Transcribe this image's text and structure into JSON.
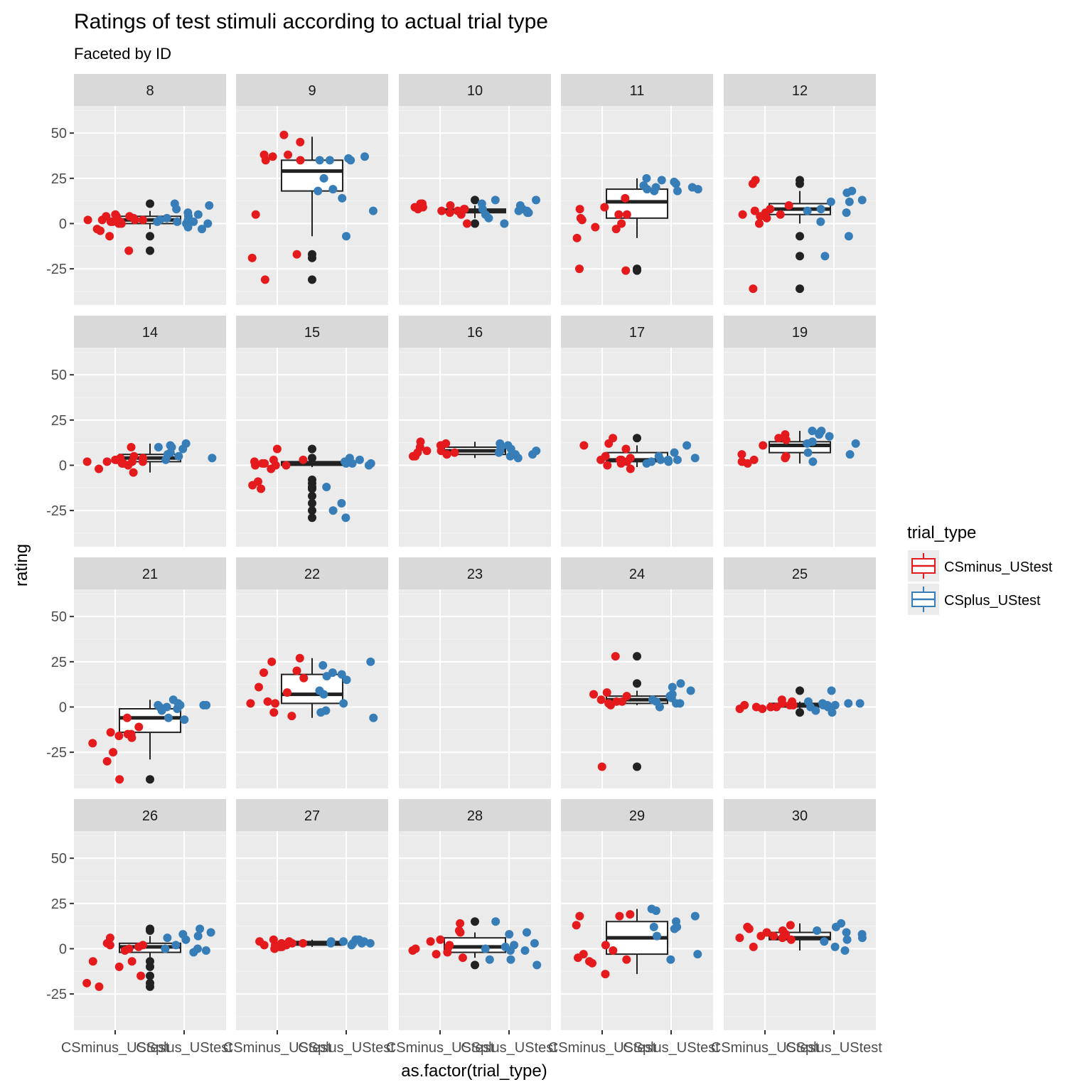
{
  "chart_data": {
    "type": "boxplot+jitter (faceted)",
    "title": "Ratings of test stimuli according to actual trial type",
    "subtitle": "Faceted by ID",
    "xlabel": "as.factor(trial_type)",
    "ylabel": "rating",
    "categories": [
      "CSminus_UStest",
      "CSplus_UStest"
    ],
    "y_ticks": [
      50,
      25,
      0,
      -25
    ],
    "ylim": [
      -45,
      65
    ],
    "legend": {
      "title": "trial_type",
      "placement": "right",
      "entries": [
        {
          "label": "CSminus_UStest",
          "color": "#e41a1c"
        },
        {
          "label": "CSplus_UStest",
          "color": "#377eb8"
        }
      ]
    },
    "colors": {
      "CSminus_UStest": "#e41a1c",
      "CSplus_UStest": "#377eb8",
      "box": "#222222",
      "panel": "#ebebeb",
      "strip": "#d9d9d9"
    },
    "panels": [
      {
        "id": "8",
        "box": {
          "whisker_low": -3,
          "q1": 0,
          "median": 2,
          "q3": 4,
          "whisker_high": 7
        },
        "outliers": [
          11,
          -7,
          -15
        ],
        "csminus": [
          -3,
          -15,
          0,
          1,
          2,
          3,
          4,
          5,
          4,
          3,
          2,
          1,
          0,
          -7,
          2,
          4,
          1,
          -4,
          2
        ],
        "csplus": [
          1,
          2,
          8,
          11,
          10,
          0,
          -2,
          6,
          4,
          2,
          1,
          0,
          -3,
          3,
          5,
          1
        ]
      },
      {
        "id": "9",
        "box": {
          "whisker_low": -7,
          "q1": 18,
          "median": 29,
          "q3": 35,
          "whisker_high": 48
        },
        "outliers": [
          -17,
          -19,
          -31
        ],
        "csminus": [
          38,
          37,
          35,
          45,
          49,
          35,
          38,
          5,
          -17,
          -19,
          -31
        ],
        "csplus": [
          35,
          37,
          36,
          35,
          25,
          19,
          7,
          14,
          18,
          -7,
          35
        ]
      },
      {
        "id": "10",
        "box": {
          "whisker_low": 3,
          "q1": 6,
          "median": 7,
          "q3": 8,
          "whisker_high": 10
        },
        "outliers": [
          13,
          0
        ],
        "csminus": [
          9,
          11,
          8,
          7,
          9,
          11,
          10,
          8,
          6,
          0,
          5,
          7,
          8
        ],
        "csplus": [
          13,
          7,
          8,
          11,
          6,
          5,
          13,
          3,
          7,
          0,
          8,
          6,
          10
        ]
      },
      {
        "id": "11",
        "box": {
          "whisker_low": -8,
          "q1": 3,
          "median": 12,
          "q3": 19,
          "whisker_high": 25
        },
        "outliers": [
          -25,
          -26
        ],
        "csminus": [
          3,
          8,
          14,
          9,
          5,
          -2,
          -3,
          -8,
          0,
          5,
          2,
          -26,
          -25
        ],
        "csplus": [
          24,
          19,
          18,
          20,
          21,
          25,
          22,
          20,
          23,
          19,
          18
        ]
      },
      {
        "id": "12",
        "box": {
          "whisker_low": 0,
          "q1": 5,
          "median": 8,
          "q3": 11,
          "whisker_high": 18
        },
        "outliers": [
          22,
          24,
          -7,
          -18,
          -36
        ],
        "csminus": [
          10,
          22,
          4,
          6,
          5,
          8,
          7,
          3,
          0,
          24,
          5,
          -36
        ],
        "csplus": [
          17,
          12,
          13,
          18,
          8,
          1,
          -7,
          12,
          6,
          7,
          -18
        ]
      },
      {
        "id": "14",
        "box": {
          "whisker_low": -4,
          "q1": 2,
          "median": 4,
          "q3": 6,
          "whisker_high": 12
        },
        "outliers": [],
        "csminus": [
          10,
          2,
          -2,
          0,
          5,
          4,
          3,
          1,
          2,
          4,
          3,
          2,
          -4,
          1,
          2
        ],
        "csplus": [
          9,
          11,
          12,
          4,
          6,
          10,
          7,
          10,
          5,
          3
        ]
      },
      {
        "id": "15",
        "box": {
          "whisker_low": -1,
          "q1": 0,
          "median": 1,
          "q3": 2,
          "whisker_high": 4
        },
        "outliers": [
          9,
          4,
          -8,
          -10,
          -12,
          -13,
          -17,
          -21,
          -25,
          -29
        ],
        "csminus": [
          1,
          0,
          3,
          9,
          -2,
          0,
          1,
          0,
          3,
          2,
          -9,
          -11,
          -13
        ],
        "csplus": [
          1,
          2,
          0,
          3,
          1,
          2,
          4,
          -12,
          -21,
          -25,
          -29,
          1
        ]
      },
      {
        "id": "16",
        "box": {
          "whisker_low": 4,
          "q1": 6,
          "median": 8,
          "q3": 10,
          "whisker_high": 13
        },
        "outliers": [],
        "csminus": [
          6,
          7,
          8,
          13,
          11,
          7,
          6,
          5,
          5,
          8,
          10,
          12
        ],
        "csplus": [
          8,
          10,
          9,
          6,
          7,
          5,
          4,
          11,
          12,
          6,
          8
        ]
      },
      {
        "id": "17",
        "box": {
          "whisker_low": -1,
          "q1": 2,
          "median": 3,
          "q3": 7,
          "whisker_high": 11
        },
        "outliers": [
          15
        ],
        "csminus": [
          15,
          12,
          3,
          2,
          -2,
          4,
          3,
          1,
          11,
          0,
          9,
          3,
          5
        ],
        "csplus": [
          11,
          2,
          3,
          5,
          7,
          3,
          2,
          1,
          3,
          4
        ]
      },
      {
        "id": "19",
        "box": {
          "whisker_low": 1,
          "q1": 7,
          "median": 11,
          "q3": 13,
          "whisker_high": 19
        },
        "outliers": [],
        "csminus": [
          14,
          11,
          17,
          15,
          1,
          2,
          4,
          3,
          5,
          6
        ],
        "csplus": [
          17,
          19,
          19,
          12,
          6,
          7,
          13,
          16,
          18,
          12,
          2
        ]
      },
      {
        "id": "21",
        "box": {
          "whisker_low": -29,
          "q1": -14,
          "median": -6,
          "q3": -1,
          "whisker_high": 4
        },
        "outliers": [
          -40
        ],
        "csminus": [
          -6,
          -17,
          -15,
          -20,
          -25,
          -40,
          -11,
          -14,
          -16,
          -15,
          -30
        ],
        "csplus": [
          4,
          1,
          -1,
          2,
          1,
          0,
          -7,
          -6,
          0,
          1,
          -2,
          1
        ]
      },
      {
        "id": "22",
        "box": {
          "whisker_low": -6,
          "q1": 2,
          "median": 7,
          "q3": 18,
          "whisker_high": 27
        },
        "outliers": [],
        "csminus": [
          2,
          3,
          -5,
          16,
          19,
          25,
          27,
          11,
          8,
          -3,
          2,
          20
        ],
        "csplus": [
          18,
          15,
          25,
          23,
          2,
          -2,
          -3,
          17,
          19,
          7,
          9,
          -6
        ]
      },
      {
        "id": "23",
        "box": null,
        "outliers": [],
        "csminus": [],
        "csplus": []
      },
      {
        "id": "24",
        "box": {
          "whisker_low": 1,
          "q1": 2,
          "median": 4,
          "q3": 6,
          "whisker_high": 9
        },
        "outliers": [
          28,
          13,
          -33
        ],
        "csminus": [
          6,
          8,
          7,
          3,
          2,
          28,
          1,
          -33,
          3,
          4
        ],
        "csplus": [
          13,
          11,
          9,
          7,
          5,
          3,
          2,
          4,
          0,
          2,
          6
        ]
      },
      {
        "id": "25",
        "box": {
          "whisker_low": -1,
          "q1": 0,
          "median": 1,
          "q3": 2,
          "whisker_high": 3
        },
        "outliers": [
          9,
          -3
        ],
        "csminus": [
          3,
          -1,
          0,
          1,
          4,
          2,
          0,
          1,
          0,
          -1,
          1
        ],
        "csplus": [
          2,
          1,
          0,
          -2,
          -3,
          3,
          9,
          2,
          1,
          0,
          1,
          2
        ]
      },
      {
        "id": "26",
        "box": {
          "whisker_low": -5,
          "q1": -2,
          "median": 1,
          "q3": 3,
          "whisker_high": 7
        },
        "outliers": [
          11,
          10,
          -7,
          -10,
          -15,
          -19,
          -21
        ],
        "csminus": [
          3,
          2,
          -1,
          -7,
          -10,
          2,
          -19,
          6,
          -7,
          -15,
          -21,
          1,
          0
        ],
        "csplus": [
          11,
          7,
          6,
          9,
          0,
          -2,
          2,
          0,
          -1,
          5,
          8
        ]
      },
      {
        "id": "27",
        "box": {
          "whisker_low": 1,
          "q1": 2,
          "median": 3,
          "q3": 4,
          "whisker_high": 5
        },
        "outliers": [],
        "csminus": [
          3,
          1,
          2,
          4,
          5,
          3,
          2,
          1,
          0,
          2,
          3,
          4
        ],
        "csplus": [
          3,
          4,
          5,
          2,
          3,
          4,
          5,
          3,
          4,
          3
        ]
      },
      {
        "id": "28",
        "box": {
          "whisker_low": -5,
          "q1": -2,
          "median": 1,
          "q3": 6,
          "whisker_high": 9
        },
        "outliers": [
          15,
          -9
        ],
        "csminus": [
          1,
          -3,
          -1,
          14,
          10,
          5,
          2,
          -2,
          -5,
          9,
          0,
          4
        ],
        "csplus": [
          15,
          9,
          8,
          3,
          -1,
          -6,
          -6,
          -9,
          -1,
          0,
          2,
          1
        ]
      },
      {
        "id": "29",
        "box": {
          "whisker_low": -14,
          "q1": -3,
          "median": 6,
          "q3": 15,
          "whisker_high": 22
        },
        "outliers": [],
        "csminus": [
          18,
          13,
          18,
          -6,
          -5,
          -3,
          -1,
          -14,
          -7,
          -8,
          19,
          2
        ],
        "csplus": [
          21,
          22,
          15,
          12,
          11,
          7,
          -3,
          -6,
          18,
          12
        ]
      },
      {
        "id": "30",
        "box": {
          "whisker_low": -1,
          "q1": 5,
          "median": 6,
          "q3": 9,
          "whisker_high": 14
        },
        "outliers": [],
        "csminus": [
          6,
          9,
          11,
          12,
          13,
          10,
          8,
          7,
          6,
          1,
          5,
          7
        ],
        "csplus": [
          14,
          9,
          8,
          12,
          10,
          6,
          4,
          5,
          -1,
          1
        ]
      }
    ]
  }
}
